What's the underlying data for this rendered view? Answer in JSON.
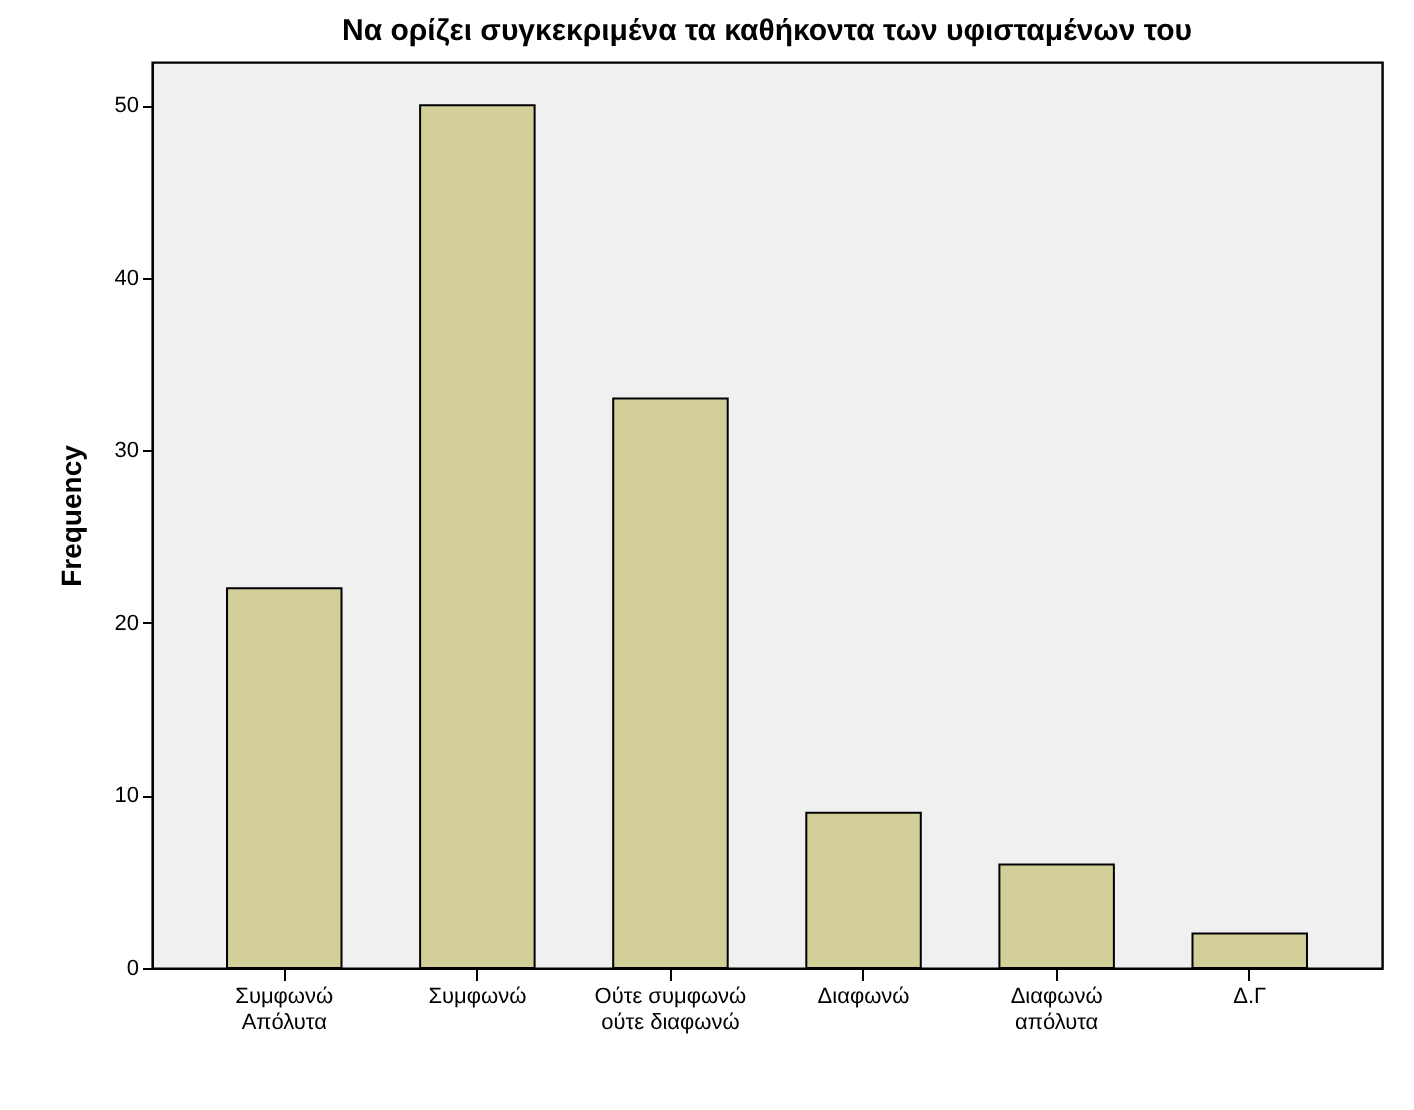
{
  "chart_data": {
    "type": "bar",
    "title": "Να ορίζει συγκεκριμένα τα καθήκοντα των υφισταμένων του",
    "ylabel": "Frequency",
    "categories": [
      "Συμφωνώ\nΑπόλυτα",
      "Συμφωνώ",
      "Ούτε συμφωνώ\nούτε διαφωνώ",
      "Διαφωνώ",
      "Διαφωνώ\nαπόλυτα",
      "Δ.Γ"
    ],
    "values": [
      22,
      50,
      33,
      9,
      6,
      2
    ],
    "color": "#d3cf98",
    "ylim": [
      0,
      52.5
    ],
    "yticks": [
      0,
      10,
      20,
      30,
      40,
      50
    ],
    "grid": false
  }
}
